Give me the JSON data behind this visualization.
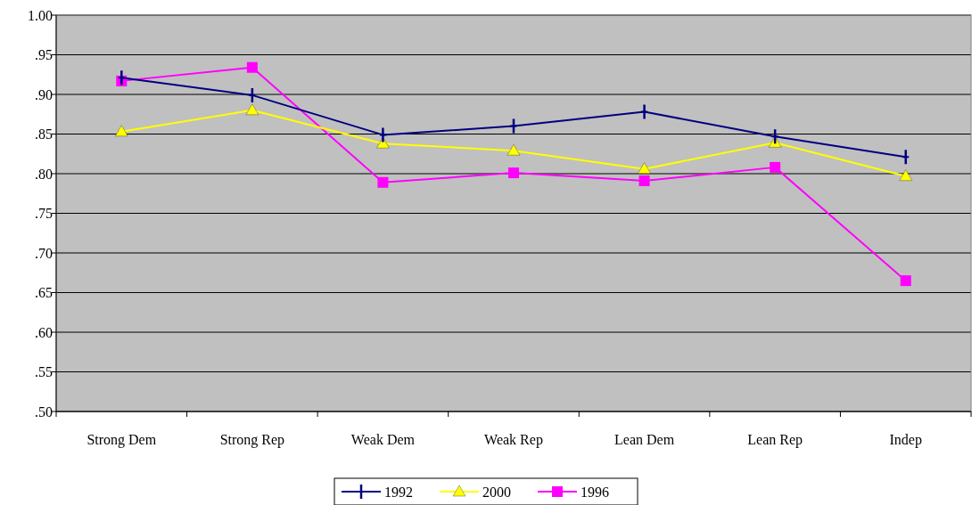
{
  "chart_data": {
    "type": "line",
    "categories": [
      "Strong Dem",
      "Strong Rep",
      "Weak Dem",
      "Weak Rep",
      "Lean Dem",
      "Lean Rep",
      "Indep"
    ],
    "series": [
      {
        "name": "1992",
        "color": "#000080",
        "marker": "cross",
        "values": [
          0.921,
          0.899,
          0.849,
          0.86,
          0.878,
          0.847,
          0.821
        ]
      },
      {
        "name": "2000",
        "color": "#ffff00",
        "marker": "triangle",
        "values": [
          0.853,
          0.88,
          0.838,
          0.829,
          0.806,
          0.839,
          0.797
        ]
      },
      {
        "name": "1996",
        "color": "#ff00ff",
        "marker": "square",
        "values": [
          0.917,
          0.934,
          0.789,
          0.801,
          0.791,
          0.808,
          0.665
        ]
      }
    ],
    "ylim": [
      0.5,
      1.0
    ],
    "yticks": [
      {
        "value": 0.5,
        "label": ".50"
      },
      {
        "value": 0.55,
        "label": ".55"
      },
      {
        "value": 0.6,
        "label": ".60"
      },
      {
        "value": 0.65,
        "label": ".65"
      },
      {
        "value": 0.7,
        "label": ".70"
      },
      {
        "value": 0.75,
        "label": ".75"
      },
      {
        "value": 0.8,
        "label": ".80"
      },
      {
        "value": 0.85,
        "label": ".85"
      },
      {
        "value": 0.9,
        "label": ".90"
      },
      {
        "value": 0.95,
        "label": ".95"
      },
      {
        "value": 1.0,
        "label": "1.00"
      }
    ],
    "grid": "y",
    "legend": "bottom"
  }
}
